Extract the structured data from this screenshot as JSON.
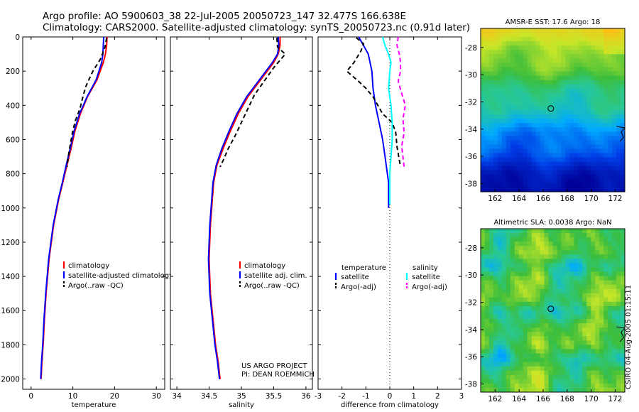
{
  "header": {
    "line1": "Argo profile: AO 5900603_38 22-Jul-2005 20050723_147 32.477S 166.638E",
    "line2": "Climatology: CARS2000. Satellite-adjusted climatology: synTS_20050723.nc (0.91d later)"
  },
  "side_label": "CSIRO 04-Aug-2005 01:15:11",
  "colors": {
    "climatology": "#ff0000",
    "satellite": "#0000ff",
    "argo": "#000000",
    "cyan": "#00ffff",
    "magenta": "#ff00ff"
  },
  "chart_data": [
    {
      "type": "line",
      "xlabel": "temperature",
      "xlim": [
        -2,
        32
      ],
      "xticks": [
        "0",
        "10",
        "20",
        "30"
      ],
      "xtick_values": [
        0,
        10,
        20,
        30
      ],
      "ylim": [
        0,
        2060
      ],
      "yticks": [
        "0",
        "200",
        "400",
        "600",
        "800",
        "1000",
        "1200",
        "1400",
        "1600",
        "1800",
        "2000"
      ],
      "ytick_values": [
        0,
        200,
        400,
        600,
        800,
        1000,
        1200,
        1400,
        1600,
        1800,
        2000
      ],
      "legend": [
        "climatology",
        "satellite-adjusted climatology",
        "Argo(..raw -QC)"
      ],
      "series": [
        {
          "name": "climatology",
          "color": "#ff0000",
          "dash": "",
          "x": [
            18.2,
            18.1,
            17.8,
            17.3,
            15.8,
            13.5,
            11.8,
            10.5,
            9.6,
            8.6,
            7.6,
            6.6,
            5.4,
            4.3,
            3.6,
            3.2,
            2.9,
            2.6,
            2.4
          ],
          "y": [
            0,
            50,
            100,
            150,
            250,
            350,
            450,
            550,
            650,
            750,
            850,
            950,
            1100,
            1300,
            1500,
            1650,
            1800,
            1900,
            2000
          ]
        },
        {
          "name": "satellite",
          "color": "#0000ff",
          "dash": "",
          "x": [
            17.4,
            17.3,
            17.2,
            16.9,
            15.6,
            13.4,
            11.6,
            10.3,
            9.4,
            8.4,
            7.5,
            6.5,
            5.3,
            4.2,
            3.5,
            3.1,
            2.8,
            2.5,
            2.3
          ],
          "y": [
            0,
            50,
            100,
            150,
            250,
            350,
            450,
            550,
            650,
            750,
            850,
            950,
            1100,
            1300,
            1500,
            1650,
            1800,
            1900,
            2000
          ]
        },
        {
          "name": "Argo",
          "color": "#000000",
          "dash": "6,4",
          "x": [
            18.1,
            17.7,
            16.6,
            14.8,
            13.1,
            12.3,
            11.7,
            10.6,
            9.9,
            9.3,
            8.9,
            8.6
          ],
          "y": [
            5,
            60,
            130,
            200,
            290,
            360,
            420,
            490,
            560,
            640,
            700,
            760
          ]
        }
      ]
    },
    {
      "type": "line",
      "xlabel": "salinity",
      "xlim": [
        33.9,
        36.1
      ],
      "xticks": [
        "34",
        "34.5",
        "35",
        "35.5",
        "36"
      ],
      "xtick_values": [
        34,
        34.5,
        35,
        35.5,
        36
      ],
      "ylim": [
        0,
        2060
      ],
      "legend": [
        "climatology",
        "satellite adj. clim.",
        "Argo(..raw -QC)"
      ],
      "annotation": [
        "US ARGO PROJECT",
        "PI: DEAN ROEMMICH"
      ],
      "series": [
        {
          "name": "climatology",
          "color": "#ff0000",
          "dash": "",
          "x": [
            35.6,
            35.6,
            35.57,
            35.5,
            35.3,
            35.1,
            34.95,
            34.83,
            34.72,
            34.62,
            34.57,
            34.55,
            34.52,
            34.5,
            34.52,
            34.56,
            34.6,
            34.64,
            34.67
          ],
          "y": [
            0,
            50,
            100,
            150,
            250,
            350,
            450,
            550,
            650,
            750,
            850,
            950,
            1100,
            1300,
            1500,
            1650,
            1800,
            1900,
            2000
          ]
        },
        {
          "name": "satellite",
          "color": "#0000ff",
          "dash": "",
          "x": [
            35.57,
            35.58,
            35.56,
            35.48,
            35.28,
            35.08,
            34.93,
            34.81,
            34.7,
            34.61,
            34.56,
            34.54,
            34.51,
            34.49,
            34.51,
            34.55,
            34.59,
            34.63,
            34.66
          ],
          "y": [
            0,
            50,
            100,
            150,
            250,
            350,
            450,
            550,
            650,
            750,
            850,
            950,
            1100,
            1300,
            1500,
            1650,
            1800,
            1900,
            2000
          ]
        },
        {
          "name": "Argo",
          "color": "#000000",
          "dash": "6,4",
          "x": [
            35.55,
            35.56,
            35.68,
            35.5,
            35.35,
            35.2,
            35.1,
            35.0,
            34.9,
            34.8,
            34.72,
            34.67
          ],
          "y": [
            5,
            60,
            100,
            180,
            260,
            340,
            420,
            500,
            580,
            650,
            720,
            760
          ]
        }
      ]
    },
    {
      "type": "line",
      "xlabel": "difference from climatology",
      "xlim": [
        -3,
        3
      ],
      "xticks": [
        "-3",
        "-2",
        "-1",
        "0",
        "1",
        "2",
        "3"
      ],
      "xtick_values": [
        -3,
        -2,
        -1,
        0,
        1,
        2,
        3
      ],
      "ylim": [
        0,
        2060
      ],
      "legend_left_title": "temperature",
      "legend_left": [
        "satellite",
        "Argo(-adj)"
      ],
      "legend_right_title": "salinity",
      "legend_right": [
        "satellite",
        "Argo(-adj)"
      ],
      "zero_line": 0,
      "series": [
        {
          "name": "temp satellite",
          "color": "#0000ff",
          "dash": "",
          "x": [
            -1.3,
            -1.1,
            -0.9,
            -0.75,
            -0.7,
            -0.6,
            -0.45,
            -0.3,
            -0.2,
            -0.1,
            -0.05,
            -0.05,
            -0.05,
            -0.05,
            -0.05
          ],
          "y": [
            0,
            50,
            100,
            200,
            300,
            400,
            500,
            600,
            700,
            800,
            850,
            900,
            950,
            980,
            1000
          ]
        },
        {
          "name": "temp argo",
          "color": "#000000",
          "dash": "6,4",
          "x": [
            -1.4,
            -1.1,
            -1.2,
            -1.5,
            -1.8,
            -1.3,
            -1.0,
            -0.7,
            -0.5,
            -0.3,
            0.1,
            0.25,
            0.3,
            0.45
          ],
          "y": [
            5,
            40,
            80,
            150,
            200,
            260,
            300,
            350,
            400,
            450,
            500,
            560,
            640,
            760
          ]
        },
        {
          "name": "sal satellite",
          "color": "#00ffff",
          "dash": "",
          "x": [
            -0.3,
            -0.2,
            -0.05,
            0.05,
            0.0,
            -0.05,
            0.05,
            0.1,
            0.1,
            0.05,
            0.0,
            0.0,
            0.0
          ],
          "y": [
            0,
            50,
            100,
            150,
            200,
            300,
            400,
            500,
            600,
            700,
            800,
            900,
            980
          ]
        },
        {
          "name": "sal argo",
          "color": "#ff00ff",
          "dash": "6,4",
          "x": [
            0.35,
            0.3,
            0.4,
            0.45,
            0.45,
            0.35,
            0.5,
            0.65,
            0.55,
            0.6,
            0.5,
            0.55,
            0.6
          ],
          "y": [
            0,
            50,
            100,
            150,
            200,
            260,
            330,
            400,
            480,
            560,
            640,
            700,
            760
          ]
        }
      ]
    },
    {
      "type": "heatmap",
      "title": "AMSR-E SST: 17.6 Argo: 18",
      "xticks": [
        "162",
        "164",
        "166",
        "168",
        "170",
        "172"
      ],
      "xtick_values": [
        162,
        164,
        166,
        168,
        170,
        172
      ],
      "yticks": [
        "-28",
        "-30",
        "-32",
        "-34",
        "-36",
        "-38"
      ],
      "ytick_values": [
        -28,
        -30,
        -32,
        -34,
        -36,
        -38
      ],
      "xlim": [
        160.8,
        172.8
      ],
      "ylim": [
        -38.6,
        -26.6
      ],
      "marker": {
        "lon": 166.64,
        "lat": -32.48
      }
    },
    {
      "type": "heatmap",
      "title": "Altimetric SLA: 0.0038 Argo: NaN",
      "xticks": [
        "162",
        "164",
        "166",
        "168",
        "170",
        "172"
      ],
      "xtick_values": [
        162,
        164,
        166,
        168,
        170,
        172
      ],
      "yticks": [
        "-28",
        "-30",
        "-32",
        "-34",
        "-36",
        "-38"
      ],
      "ytick_values": [
        -28,
        -30,
        -32,
        -34,
        -36,
        -38
      ],
      "xlim": [
        160.8,
        172.8
      ],
      "ylim": [
        -38.6,
        -26.6
      ],
      "marker": {
        "lon": 166.64,
        "lat": -32.48
      }
    }
  ]
}
